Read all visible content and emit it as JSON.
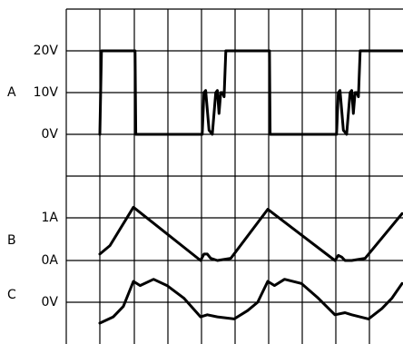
{
  "chart_data": {
    "type": "line",
    "grid": "on",
    "channels": [
      {
        "letter": "A",
        "unit": "V",
        "ticks": [
          "20V",
          "10V",
          "0V"
        ],
        "series": {
          "x": [
            0,
            0.05,
            1.05,
            1.07,
            3.05,
            3.1,
            3.15,
            3.25,
            3.35,
            3.45,
            3.5,
            3.55,
            3.6,
            3.65,
            3.7,
            3.75,
            3.8,
            3.85,
            4.0,
            4.05,
            5.05,
            5.07,
            7.05,
            7.1,
            7.15,
            7.25,
            7.35,
            7.45,
            7.5,
            7.55,
            7.6,
            7.65,
            7.7,
            7.75,
            7.8,
            7.85,
            8.0,
            8.05,
            9.0
          ],
          "y": [
            0,
            20,
            20,
            0,
            0,
            10,
            10.5,
            1,
            0,
            10,
            10.5,
            5,
            10,
            10,
            9,
            20,
            20,
            20,
            20,
            20,
            20,
            0,
            0,
            10,
            10.5,
            1,
            0,
            10,
            10.5,
            5,
            10,
            10,
            9,
            20,
            20,
            20,
            20,
            20,
            20
          ]
        },
        "ylim": [
          0,
          20
        ]
      },
      {
        "letter": "B",
        "unit": "A",
        "ticks": [
          "1A",
          "0A"
        ],
        "series": {
          "x": [
            0,
            0.3,
            1.0,
            3.0,
            3.1,
            3.2,
            3.3,
            3.5,
            3.9,
            5.0,
            7.0,
            7.1,
            7.2,
            7.3,
            7.5,
            7.9,
            9.0
          ],
          "y": [
            0.15,
            0.35,
            1.25,
            0.0,
            0.15,
            0.15,
            0.05,
            0.0,
            0.05,
            1.2,
            0.0,
            0.12,
            0.08,
            0.0,
            0.0,
            0.05,
            1.1
          ],
          "ylim": [
            0,
            1
          ]
        }
      },
      {
        "letter": "C",
        "unit": "V",
        "ticks": [
          "0V"
        ],
        "series": {
          "x": [
            0,
            0.4,
            0.7,
            1.0,
            1.2,
            1.6,
            2.0,
            2.5,
            3.0,
            3.2,
            3.5,
            4.0,
            4.4,
            4.7,
            5.0,
            5.2,
            5.5,
            6.0,
            6.5,
            7.0,
            7.3,
            7.5,
            8.0,
            8.4,
            8.7,
            9.0
          ],
          "y": [
            -0.5,
            -0.35,
            -0.1,
            0.5,
            0.4,
            0.55,
            0.4,
            0.1,
            -0.35,
            -0.3,
            -0.35,
            -0.4,
            -0.2,
            0.0,
            0.5,
            0.4,
            0.55,
            0.45,
            0.1,
            -0.3,
            -0.25,
            -0.3,
            -0.4,
            -0.15,
            0.1,
            0.45
          ]
        },
        "ylim": [
          -1,
          1
        ]
      }
    ]
  }
}
